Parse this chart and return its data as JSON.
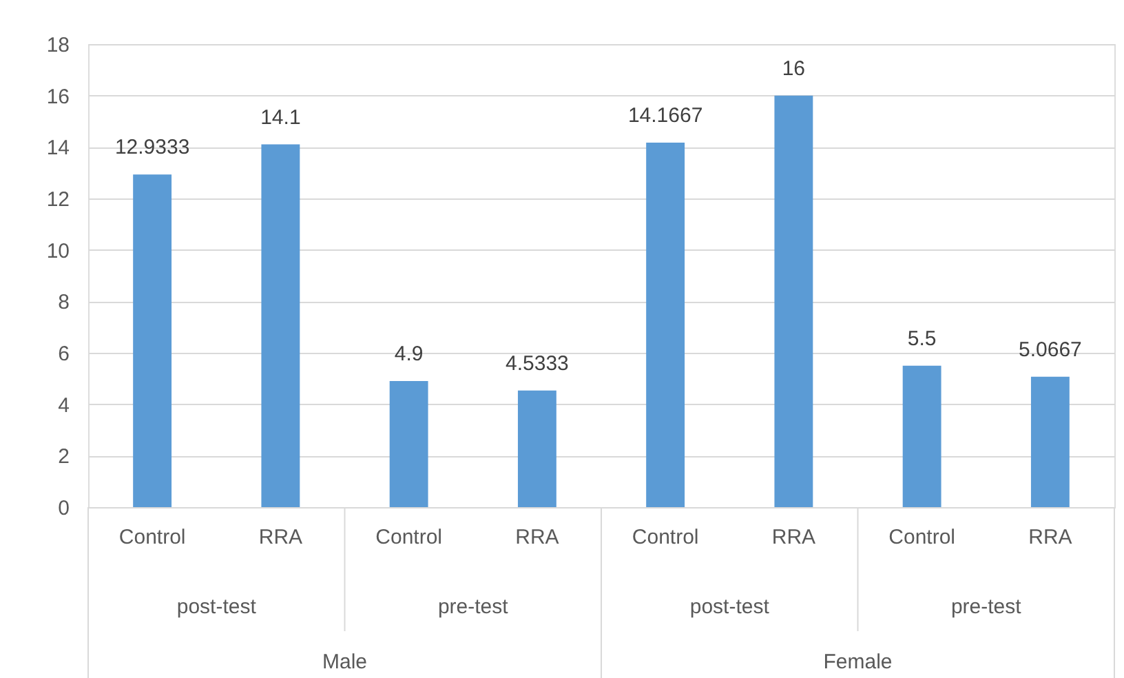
{
  "chart_data": {
    "type": "bar",
    "categories": [
      "Control",
      "RRA",
      "Control",
      "RRA",
      "Control",
      "RRA",
      "Control",
      "RRA"
    ],
    "values": [
      12.9333,
      14.1,
      4.9,
      4.5333,
      14.1667,
      16,
      5.5,
      5.0667
    ],
    "color": "#5b9bd5",
    "ylim": [
      0,
      18
    ],
    "yticks": [
      0,
      2,
      4,
      6,
      8,
      10,
      12,
      14,
      16,
      18
    ],
    "grid": "y",
    "data_labels": true,
    "annotations": [
      "post-test",
      "pre-test",
      "post-test",
      "pre-test",
      "Male",
      "Female"
    ]
  }
}
